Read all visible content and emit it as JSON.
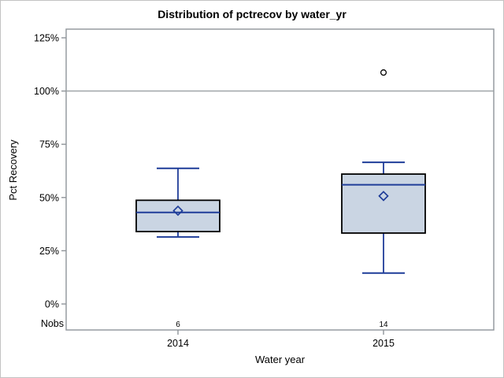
{
  "chart_data": {
    "type": "boxplot",
    "title": "Distribution of pctrecov by water_yr",
    "xlabel": "Water year",
    "ylabel": "Pct Recovery",
    "y_axis": {
      "min": 0,
      "max": 125,
      "unit": "%",
      "ticks": [
        0,
        25,
        50,
        75,
        100,
        125
      ],
      "tick_labels": [
        "0%",
        "25%",
        "50%",
        "75%",
        "100%",
        "125%"
      ]
    },
    "reference_line": {
      "value": 100
    },
    "grid": "off",
    "legend": "none",
    "nobs_row_label": "Nobs",
    "categories": [
      "2014",
      "2015"
    ],
    "groups": [
      {
        "category": "2014",
        "nobs": 6,
        "whisker_low": 31.5,
        "q1": 34,
        "median": 43,
        "q3": 48.7,
        "whisker_high": 63.7,
        "mean": 43.8,
        "outliers": []
      },
      {
        "category": "2015",
        "nobs": 14,
        "whisker_low": 14.5,
        "q1": 33.3,
        "median": 56,
        "q3": 61,
        "whisker_high": 66.5,
        "mean": 50.7,
        "outliers": [
          108.7
        ]
      }
    ],
    "colors": {
      "box_fill": "#cad5e3",
      "line_blue": "#1f3d99",
      "box_border": "#000000",
      "frame_gray": "#8f9499",
      "ref_line_gray": "#9aa0a4",
      "text": "#000000",
      "outlier_stroke": "#000000",
      "background": "#ffffff"
    }
  }
}
